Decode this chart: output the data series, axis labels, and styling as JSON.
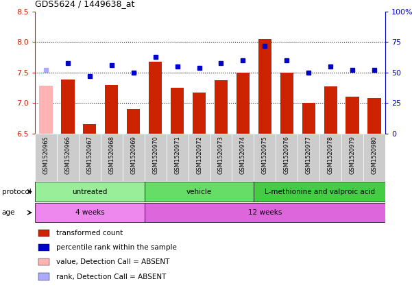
{
  "title": "GDS5624 / 1449638_at",
  "samples": [
    "GSM1520965",
    "GSM1520966",
    "GSM1520967",
    "GSM1520968",
    "GSM1520969",
    "GSM1520970",
    "GSM1520971",
    "GSM1520972",
    "GSM1520973",
    "GSM1520974",
    "GSM1520975",
    "GSM1520976",
    "GSM1520977",
    "GSM1520978",
    "GSM1520979",
    "GSM1520980"
  ],
  "bar_values": [
    7.28,
    7.38,
    6.65,
    7.3,
    6.9,
    7.68,
    7.25,
    7.17,
    7.37,
    7.5,
    8.05,
    7.5,
    7.0,
    7.27,
    7.1,
    7.08
  ],
  "bar_absent": [
    true,
    false,
    false,
    false,
    false,
    false,
    false,
    false,
    false,
    false,
    false,
    false,
    false,
    false,
    false,
    false
  ],
  "rank_values": [
    52,
    58,
    47,
    56,
    50,
    63,
    55,
    54,
    58,
    60,
    72,
    60,
    50,
    55,
    52,
    52
  ],
  "rank_absent": [
    true,
    false,
    false,
    false,
    false,
    false,
    false,
    false,
    false,
    false,
    false,
    false,
    false,
    false,
    false,
    false
  ],
  "ylim_left": [
    6.5,
    8.5
  ],
  "ylim_right": [
    0,
    100
  ],
  "yticks_left": [
    6.5,
    7.0,
    7.5,
    8.0,
    8.5
  ],
  "yticks_right": [
    0,
    25,
    50,
    75,
    100
  ],
  "ytick_labels_right": [
    "0",
    "25",
    "50",
    "75",
    "100%"
  ],
  "hlines": [
    7.0,
    7.5,
    8.0
  ],
  "bar_color": "#cc2200",
  "bar_absent_color": "#ffb3b3",
  "rank_color": "#0000cc",
  "rank_absent_color": "#aaaaff",
  "protocol_groups": [
    {
      "label": "untreated",
      "start": 0,
      "end": 5,
      "color": "#99ee99"
    },
    {
      "label": "vehicle",
      "start": 5,
      "end": 10,
      "color": "#66dd66"
    },
    {
      "label": "L-methionine and valproic acid",
      "start": 10,
      "end": 16,
      "color": "#44cc44"
    }
  ],
  "age_groups": [
    {
      "label": "4 weeks",
      "start": 0,
      "end": 5,
      "color": "#ee88ee"
    },
    {
      "label": "12 weeks",
      "start": 5,
      "end": 16,
      "color": "#dd66dd"
    }
  ],
  "left_tick_color": "#cc2200",
  "right_tick_color": "#0000cc",
  "legend_items": [
    {
      "color": "#cc2200",
      "label": "transformed count"
    },
    {
      "color": "#0000cc",
      "label": "percentile rank within the sample"
    },
    {
      "color": "#ffb3b3",
      "label": "value, Detection Call = ABSENT"
    },
    {
      "color": "#aaaaff",
      "label": "rank, Detection Call = ABSENT"
    }
  ]
}
